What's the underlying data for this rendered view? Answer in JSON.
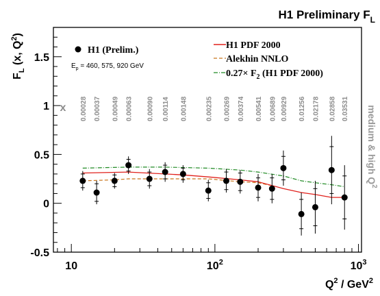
{
  "chart_data": {
    "type": "scatter",
    "title": {
      "main": "H1 Preliminary F",
      "sub": "L"
    },
    "ylabel": {
      "prefix": "F",
      "sub": "L",
      "middle": " (x, Q",
      "sup": "2",
      "suffix": ")"
    },
    "xlabel": {
      "prefix": "Q",
      "sup1": "2",
      "middle": " / GeV",
      "sup2": "2"
    },
    "x_scale": "log",
    "xlim": [
      7.5,
      1050
    ],
    "ylim": [
      -0.5,
      1.8
    ],
    "x_ticks": [
      {
        "label": "10",
        "value": 10
      },
      {
        "label": "10",
        "sup": "2",
        "value": 100
      },
      {
        "label": "10",
        "sup": "3",
        "value": 1000
      }
    ],
    "y_ticks": [
      {
        "label": "-0.5",
        "value": -0.5
      },
      {
        "label": "0",
        "value": 0
      },
      {
        "label": "0.5",
        "value": 0.5
      },
      {
        "label": "1",
        "value": 1
      },
      {
        "label": "1.5",
        "value": 1.5
      }
    ],
    "x_values_label": "x",
    "side_label": {
      "text": "medium & high Q",
      "sup": "2"
    },
    "energy_note": {
      "prefix": "E",
      "sub": "p",
      "suffix": " = 460, 575, 920 GeV"
    },
    "legend": {
      "data": "H1 (Prelim.)",
      "h1pdf": "H1 PDF 2000",
      "alekhin": "Alekhin NNLO",
      "f2_prefix": "0.27× F",
      "f2_sub": "2",
      "f2_suffix": " (H1 PDF 2000)"
    },
    "colors": {
      "data": "#000000",
      "h1pdf": "#e0201b",
      "alekhin": "#c8741a",
      "f2": "#1f8a23",
      "xlabel": "#8c8c8c"
    },
    "points": [
      {
        "q2": 12,
        "fl": 0.23,
        "err_inner": 0.07,
        "err_total": 0.1,
        "x": "0.00028"
      },
      {
        "q2": 15,
        "fl": 0.11,
        "err_inner": 0.09,
        "err_total": 0.12,
        "x": "0.00037"
      },
      {
        "q2": 20,
        "fl": 0.23,
        "err_inner": 0.06,
        "err_total": 0.08,
        "x": "0.00049"
      },
      {
        "q2": 25,
        "fl": 0.39,
        "err_inner": 0.06,
        "err_total": 0.09,
        "x": "0.00063"
      },
      {
        "q2": 35,
        "fl": 0.25,
        "err_inner": 0.07,
        "err_total": 0.1,
        "x": "0.00090"
      },
      {
        "q2": 45,
        "fl": 0.32,
        "err_inner": 0.07,
        "err_total": 0.1,
        "x": "0.00114"
      },
      {
        "q2": 60,
        "fl": 0.3,
        "err_inner": 0.06,
        "err_total": 0.09,
        "x": "0.00148"
      },
      {
        "q2": 90,
        "fl": 0.13,
        "err_inner": 0.08,
        "err_total": 0.11,
        "x": "0.00235"
      },
      {
        "q2": 120,
        "fl": 0.23,
        "err_inner": 0.09,
        "err_total": 0.12,
        "x": "0.00269"
      },
      {
        "q2": 150,
        "fl": 0.22,
        "err_inner": 0.09,
        "err_total": 0.12,
        "x": "0.00374"
      },
      {
        "q2": 200,
        "fl": 0.16,
        "err_inner": 0.1,
        "err_total": 0.14,
        "x": "0.00541"
      },
      {
        "q2": 250,
        "fl": 0.15,
        "err_inner": 0.11,
        "err_total": 0.15,
        "x": "0.00689"
      },
      {
        "q2": 300,
        "fl": 0.36,
        "err_inner": 0.12,
        "err_total": 0.18,
        "x": "0.00929"
      },
      {
        "q2": 400,
        "fl": -0.11,
        "err_inner": 0.15,
        "err_total": 0.22,
        "x": "0.01256"
      },
      {
        "q2": 500,
        "fl": -0.04,
        "err_inner": 0.19,
        "err_total": 0.27,
        "x": "0.02178"
      },
      {
        "q2": 650,
        "fl": 0.34,
        "err_inner": 0.24,
        "err_total": 0.35,
        "x": "0.02858"
      },
      {
        "q2": 800,
        "fl": 0.06,
        "err_inner": 0.22,
        "err_total": 0.33,
        "x": "0.03531"
      }
    ],
    "curves": {
      "h1pdf": [
        [
          12,
          0.31
        ],
        [
          25,
          0.32
        ],
        [
          45,
          0.3
        ],
        [
          60,
          0.29
        ],
        [
          90,
          0.27
        ],
        [
          150,
          0.24
        ],
        [
          200,
          0.22
        ],
        [
          300,
          0.15
        ],
        [
          400,
          0.11
        ],
        [
          500,
          0.09
        ],
        [
          650,
          0.06
        ],
        [
          800,
          0.06
        ]
      ],
      "alekhin": [
        [
          12,
          0.23
        ],
        [
          20,
          0.24
        ],
        [
          25,
          0.25
        ],
        [
          45,
          0.25
        ],
        [
          90,
          0.25
        ],
        [
          150,
          0.22
        ],
        [
          200,
          0.21
        ],
        [
          250,
          0.18
        ]
      ],
      "f2": [
        [
          12,
          0.36
        ],
        [
          25,
          0.37
        ],
        [
          45,
          0.37
        ],
        [
          90,
          0.36
        ],
        [
          150,
          0.34
        ],
        [
          200,
          0.32
        ],
        [
          300,
          0.28
        ],
        [
          400,
          0.23
        ],
        [
          500,
          0.21
        ],
        [
          650,
          0.19
        ],
        [
          800,
          0.17
        ]
      ]
    }
  }
}
